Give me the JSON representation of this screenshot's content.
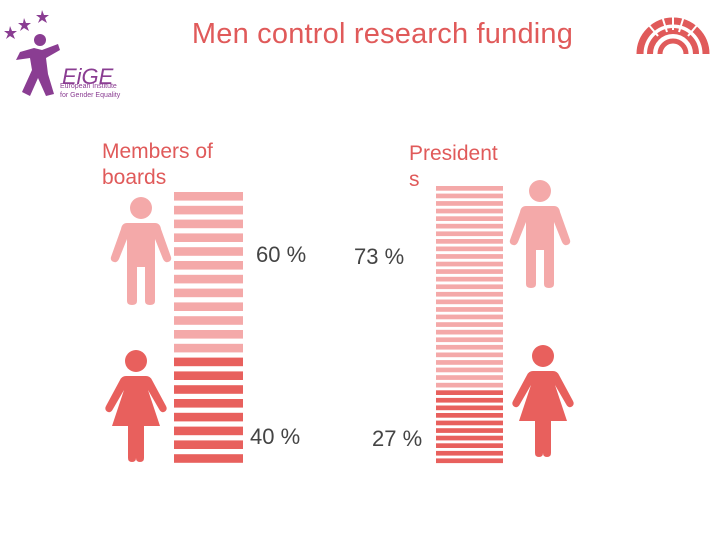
{
  "title": "Men control research funding",
  "logo": {
    "name": "EIGE",
    "tagline": "European Institute for Gender Equality"
  },
  "colors": {
    "title": "#e05a5a",
    "men": "#f4a9a9",
    "women": "#e8605d",
    "logo": "#8a3d92"
  },
  "chart_data": {
    "type": "bar",
    "title": "Men control research funding",
    "categories": [
      "Members of boards",
      "Presidents"
    ],
    "series": [
      {
        "name": "Men",
        "values": [
          60,
          73
        ],
        "labels": [
          "60 %",
          "73 %"
        ]
      },
      {
        "name": "Women",
        "values": [
          40,
          27
        ],
        "labels": [
          "40 %",
          "27 %"
        ]
      }
    ],
    "category_labels": [
      "Members of\nboards",
      "President\ns"
    ],
    "xlabel": "",
    "ylabel": "",
    "ylim": [
      0,
      100
    ],
    "grid": false,
    "legend": "none"
  }
}
